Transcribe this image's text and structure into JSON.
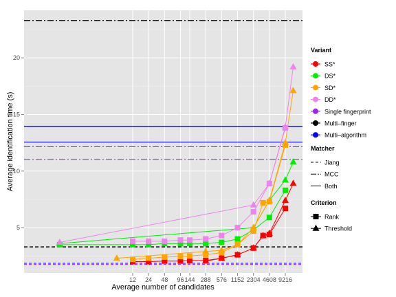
{
  "chart_data": {
    "type": "line",
    "xlabel": "Average number of candidates",
    "ylabel": "Average identification time (s)",
    "x_ticks": [
      "12",
      "24",
      "48",
      "96",
      "144",
      "288",
      "576",
      "1152",
      "2304",
      "4608",
      "9216"
    ],
    "y_ticks": [
      5,
      10,
      15,
      20
    ],
    "ylim": [
      1.0,
      24.2
    ],
    "grid": true,
    "legend_position": "right",
    "colors": {
      "SS": "#ff0000",
      "DS": "#00ee00",
      "SD": "#ffa500",
      "DD": "#ee82ee",
      "single": "#a020f0",
      "multi_finger": "#000000",
      "multi_algorithm": "#0000ff"
    },
    "series": [
      {
        "name": "SS*",
        "criterion": "Rank",
        "color_key": "SS",
        "points": [
          [
            12,
            2.0
          ],
          [
            24,
            2.0
          ],
          [
            48,
            2.05
          ],
          [
            96,
            2.05
          ],
          [
            144,
            2.1
          ],
          [
            288,
            2.1
          ],
          [
            576,
            2.3
          ],
          [
            1152,
            2.6
          ],
          [
            2304,
            3.2
          ],
          [
            3500,
            4.3
          ],
          [
            4608,
            4.4
          ],
          [
            9216,
            6.7
          ]
        ]
      },
      {
        "name": "SS*",
        "criterion": "Threshold",
        "color_key": "SS",
        "points": [
          [
            288,
            2.05
          ],
          [
            576,
            2.3
          ],
          [
            1152,
            2.6
          ],
          [
            2304,
            3.2
          ],
          [
            3500,
            4.3
          ],
          [
            4608,
            4.5
          ],
          [
            9216,
            7.4
          ],
          [
            13000,
            8.9
          ]
        ]
      },
      {
        "name": "DS*",
        "criterion": "Rank",
        "color_key": "DS",
        "points": [
          [
            0.5,
            3.5
          ],
          [
            12,
            3.5
          ],
          [
            24,
            3.5
          ],
          [
            48,
            3.6
          ],
          [
            96,
            3.6
          ],
          [
            144,
            3.6
          ],
          [
            288,
            3.6
          ],
          [
            576,
            3.7
          ],
          [
            1152,
            4.0
          ],
          [
            2304,
            4.8
          ],
          [
            4608,
            5.9
          ],
          [
            9216,
            8.3
          ]
        ]
      },
      {
        "name": "DS*",
        "criterion": "Threshold",
        "color_key": "DS",
        "points": [
          [
            0.5,
            3.6
          ],
          [
            2304,
            5.0
          ],
          [
            4608,
            7.4
          ],
          [
            9216,
            9.2
          ],
          [
            13000,
            10.8
          ]
        ]
      },
      {
        "name": "SD*",
        "criterion": "Rank",
        "color_key": "SD",
        "points": [
          [
            12,
            2.2
          ],
          [
            24,
            2.3
          ],
          [
            48,
            2.4
          ],
          [
            96,
            2.45
          ],
          [
            144,
            2.5
          ],
          [
            288,
            2.6
          ],
          [
            576,
            2.8
          ],
          [
            1152,
            3.5
          ],
          [
            2304,
            4.7
          ],
          [
            3500,
            7.2
          ],
          [
            4608,
            7.3
          ],
          [
            9216,
            12.3
          ]
        ]
      },
      {
        "name": "SD*",
        "criterion": "Threshold",
        "color_key": "SD",
        "points": [
          [
            6,
            2.3
          ],
          [
            288,
            2.9
          ],
          [
            576,
            3.0
          ],
          [
            1152,
            3.5
          ],
          [
            2304,
            5.0
          ],
          [
            4608,
            7.4
          ],
          [
            9216,
            12.5
          ],
          [
            13000,
            17.1
          ]
        ]
      },
      {
        "name": "DD*",
        "criterion": "Rank",
        "color_key": "DD",
        "points": [
          [
            12,
            3.8
          ],
          [
            24,
            3.8
          ],
          [
            48,
            3.8
          ],
          [
            96,
            3.9
          ],
          [
            144,
            3.9
          ],
          [
            288,
            4.0
          ],
          [
            576,
            4.3
          ],
          [
            1152,
            5.0
          ],
          [
            2304,
            6.4
          ],
          [
            4608,
            8.9
          ],
          [
            9216,
            13.8
          ]
        ]
      },
      {
        "name": "DD*",
        "criterion": "Threshold",
        "color_key": "DD",
        "points": [
          [
            0.5,
            3.7
          ],
          [
            2304,
            7.0
          ],
          [
            4608,
            8.9
          ],
          [
            9216,
            13.9
          ],
          [
            13000,
            19.2
          ]
        ]
      }
    ],
    "hlines": [
      {
        "variant": "Multi-finger",
        "matcher": "MCC",
        "y": 23.3,
        "color_key": "multi_finger",
        "dash": "9,3,2,3",
        "width": 1.4
      },
      {
        "variant": "Multi-finger",
        "matcher": "Jiang",
        "y": 3.3,
        "color_key": "multi_finger",
        "dash": "5,3",
        "width": 1.4
      },
      {
        "variant": "Multi-algorithm",
        "matcher": "Both",
        "y": 13.95,
        "color_key": "multi_algorithm",
        "dash": "",
        "width": 1.4
      },
      {
        "variant": "Multi-algorithm",
        "matcher": "Both",
        "y": 12.55,
        "color_key": "multi_algorithm",
        "dash": "",
        "width": 1.1
      },
      {
        "variant": "Single fingerprint",
        "matcher": "MCC",
        "y": 12.15,
        "color_key": "single",
        "dash": "9,3,2,3",
        "width": 1.1
      },
      {
        "variant": "Single fingerprint",
        "matcher": "MCC",
        "y": 11.05,
        "color_key": "single",
        "dash": "9,3,2,3",
        "width": 1.1
      },
      {
        "variant": "Multi-algorithm",
        "matcher": "Jiang",
        "y": 1.85,
        "color_key": "multi_algorithm",
        "dash": "4,3",
        "width": 1.1
      },
      {
        "variant": "Single fingerprint",
        "matcher": "Jiang",
        "y": 1.75,
        "color_key": "single",
        "dash": "4,3",
        "width": 1.1
      }
    ],
    "legend": {
      "variant": {
        "title": "Variant",
        "items": [
          {
            "label": "SS*",
            "color_key": "SS"
          },
          {
            "label": "DS*",
            "color_key": "DS"
          },
          {
            "label": "SD*",
            "color_key": "SD"
          },
          {
            "label": "DD*",
            "color_key": "DD"
          },
          {
            "label": "Single fingerprint",
            "color_key": "single"
          },
          {
            "label": "Multi–finger",
            "color_key": "multi_finger"
          },
          {
            "label": "Multi–algorithm",
            "color_key": "multi_algorithm"
          }
        ]
      },
      "matcher": {
        "title": "Matcher",
        "items": [
          {
            "label": "Jiang",
            "dash": "4,3"
          },
          {
            "label": "MCC",
            "dash": "8,2,2,2"
          },
          {
            "label": "Both",
            "dash": ""
          }
        ]
      },
      "criterion": {
        "title": "Criterion",
        "items": [
          {
            "label": "Rank",
            "shape": "square"
          },
          {
            "label": "Threshold",
            "shape": "triangle"
          }
        ]
      }
    }
  }
}
